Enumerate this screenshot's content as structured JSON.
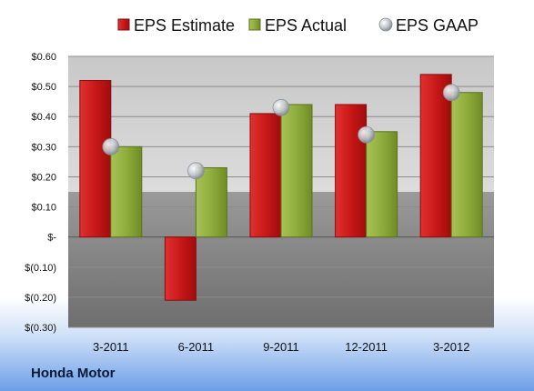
{
  "footer": {
    "company": "Honda Motor"
  },
  "colors": {
    "estimate": "#cc1f1f",
    "actual": "#8fad3c",
    "gaap": "#bfc4cc"
  },
  "chart_data": {
    "type": "bar",
    "title": "",
    "xlabel": "",
    "ylabel": "",
    "categories": [
      "3-2011",
      "6-2011",
      "9-2011",
      "12-2011",
      "3-2012"
    ],
    "series": [
      {
        "name": "EPS Estimate",
        "kind": "bar",
        "values": [
          0.52,
          -0.21,
          0.41,
          0.44,
          0.54
        ]
      },
      {
        "name": "EPS Actual",
        "kind": "bar",
        "values": [
          0.3,
          0.23,
          0.44,
          0.35,
          0.48
        ]
      },
      {
        "name": "EPS GAAP",
        "kind": "marker",
        "values": [
          0.3,
          0.22,
          0.43,
          0.34,
          0.48
        ]
      }
    ],
    "ylim": [
      -0.3,
      0.6
    ],
    "yticks": [
      0.6,
      0.5,
      0.4,
      0.3,
      0.2,
      0.1,
      0.0,
      -0.1,
      -0.2,
      -0.3
    ],
    "ytick_labels": [
      "$0.60",
      "$0.50",
      "$0.40",
      "$0.30",
      "$0.20",
      "$0.10",
      "$-",
      "$(0.10)",
      "$(0.20)",
      "$(0.30)"
    ],
    "grid": true,
    "legend": "top"
  }
}
